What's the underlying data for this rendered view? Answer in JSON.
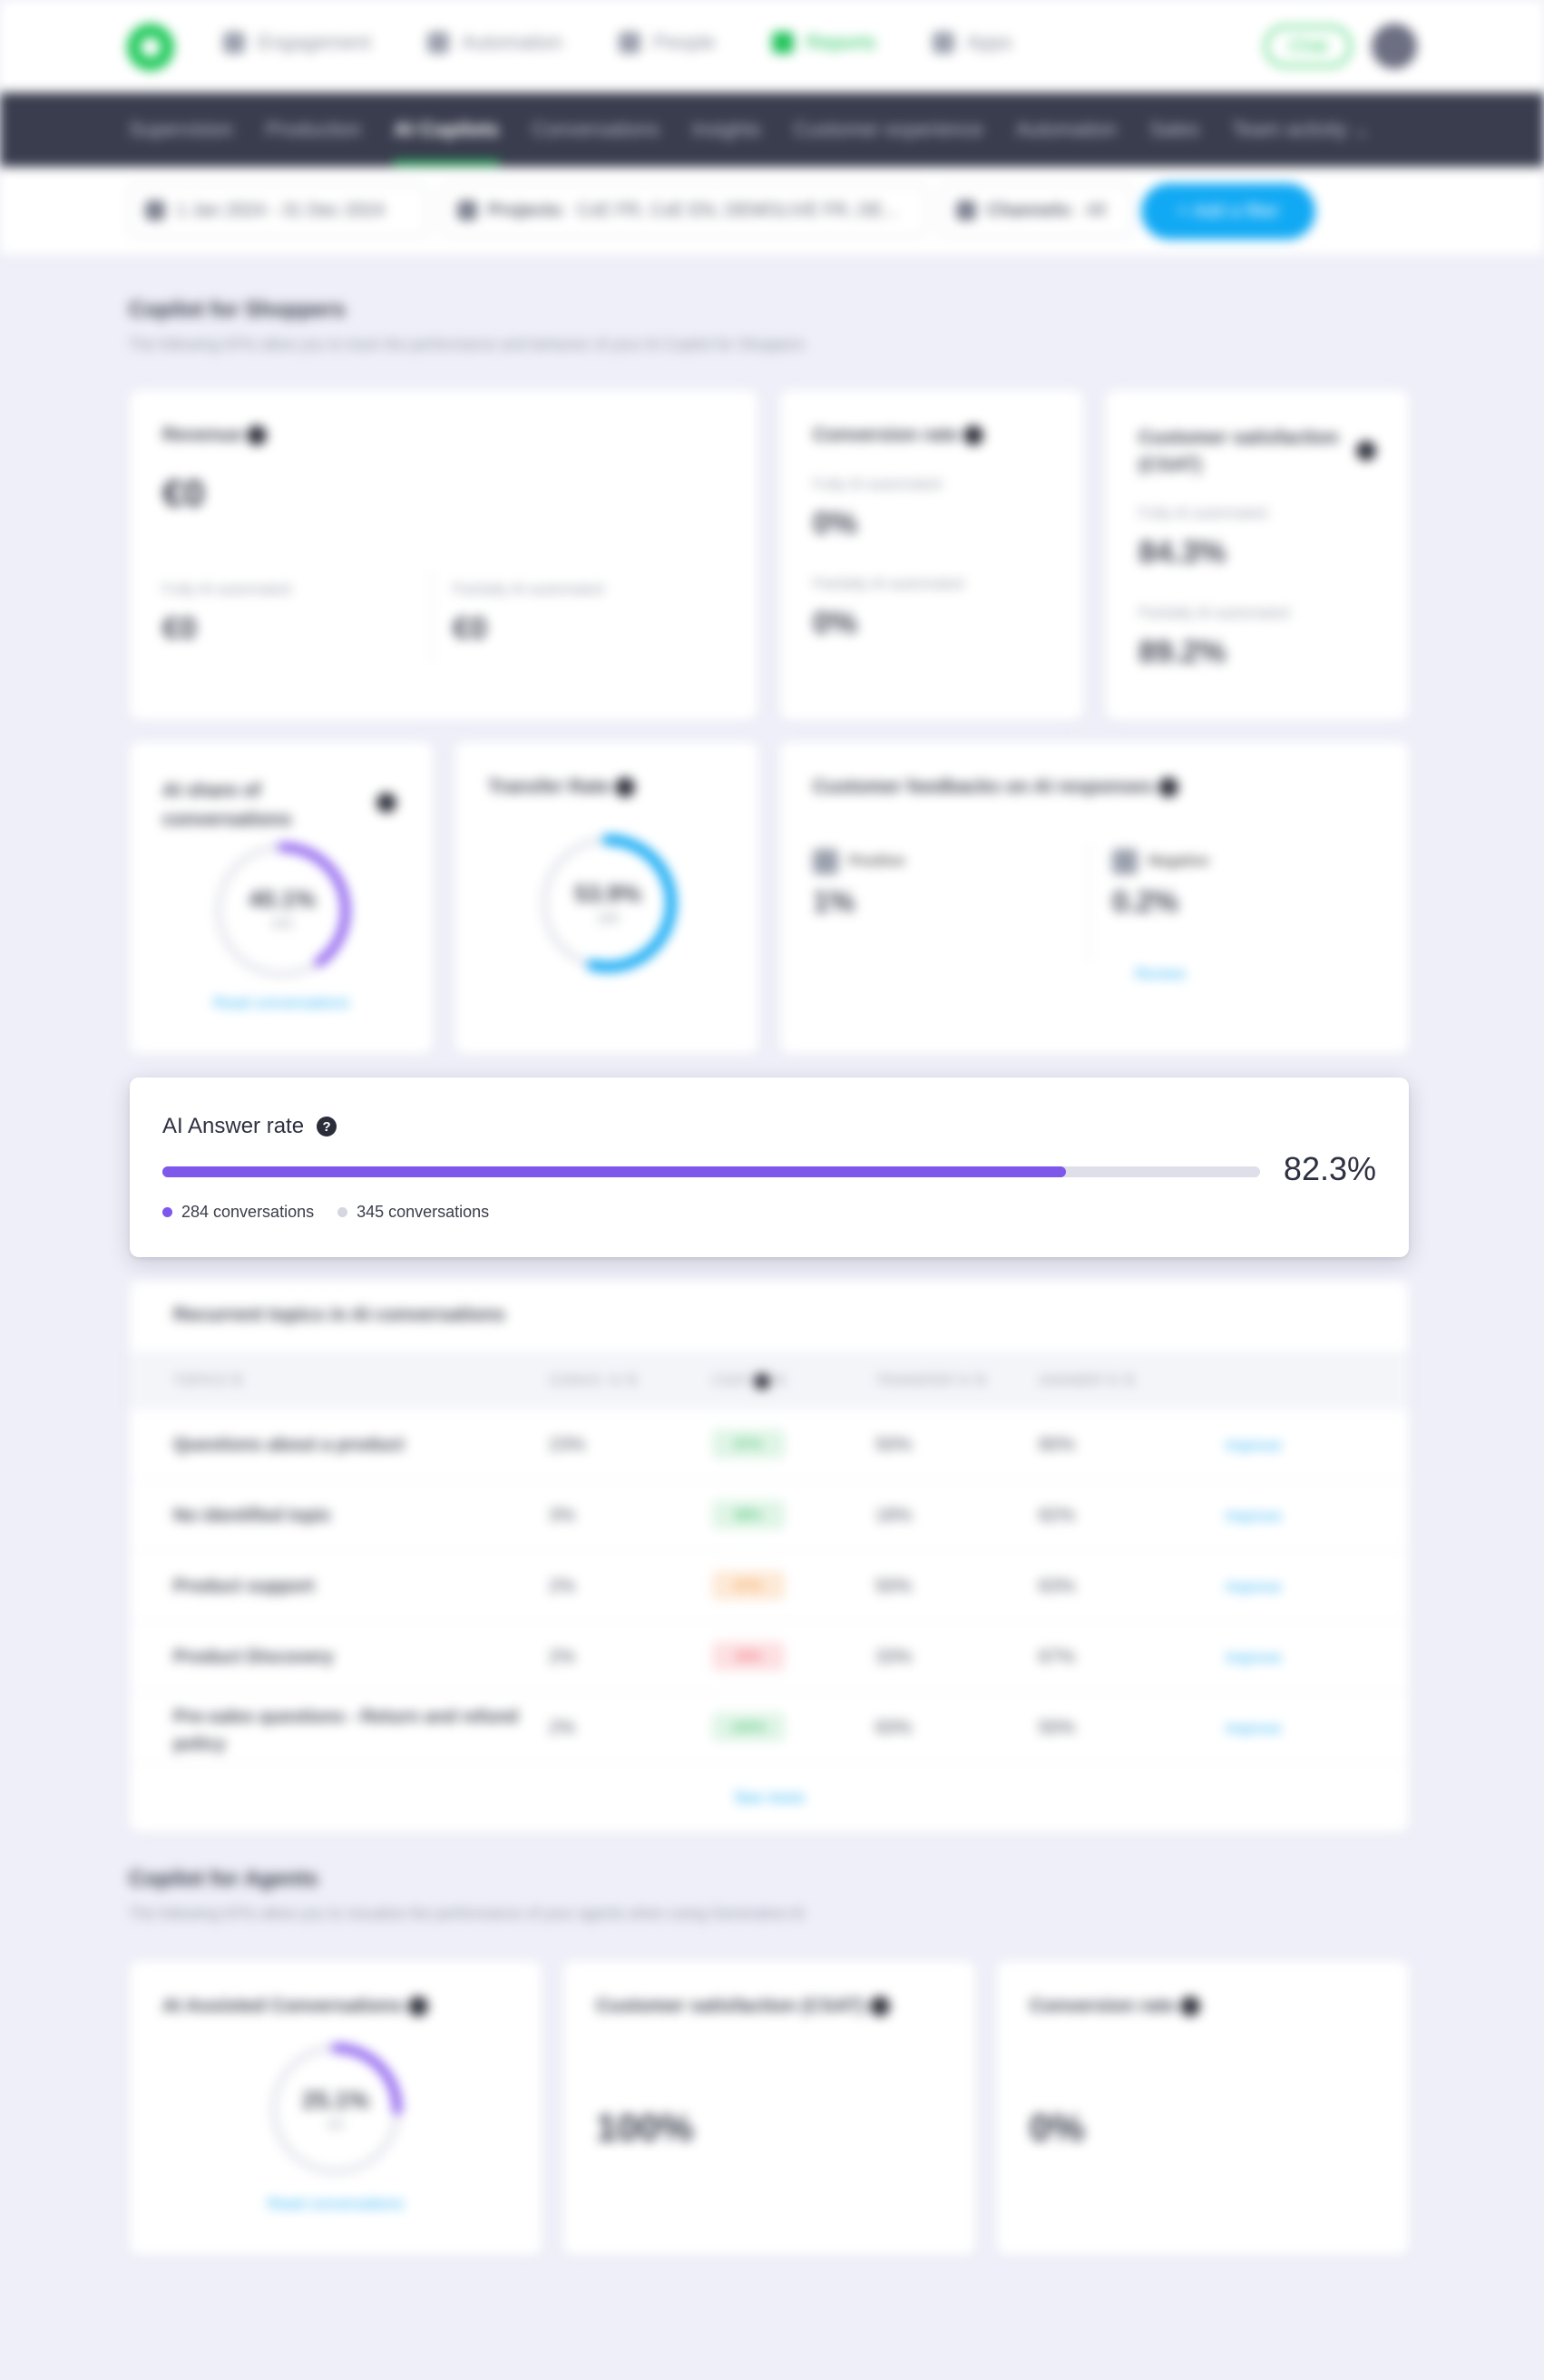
{
  "topnav": {
    "items": [
      {
        "label": "Engagement",
        "icon": "engagement-icon"
      },
      {
        "label": "Automation",
        "icon": "automation-icon"
      },
      {
        "label": "People",
        "icon": "person-icon"
      },
      {
        "label": "Reports",
        "icon": "bar-chart-icon",
        "active": true
      },
      {
        "label": "Apps",
        "icon": "apps-grid-icon"
      }
    ],
    "chat_label": "Chat"
  },
  "subnav": {
    "items": [
      "Supervision",
      "Production",
      "AI Copilots",
      "Conversations",
      "Insights",
      "Customer experience",
      "Automation",
      "Sales",
      "Team activity"
    ],
    "active_index": 2
  },
  "filters": {
    "date": "1 Jan 2024 - 31 Dec 2024",
    "projects_label": "Projects:",
    "projects_value": "CxE FR, CxE EN, DEMOLIVE FR, DE...",
    "channels_label": "Channels:",
    "channels_value": "All",
    "add_filter": "Add a filter"
  },
  "shoppers": {
    "title": "Copilot for Shoppers",
    "subtitle": "The following KPIs allow you to track the performance and behavior of your AI Copilot for Shoppers",
    "revenue": {
      "title": "Revenue",
      "value": "€0",
      "fully_label": "Fully AI-automated",
      "fully_value": "€0",
      "partially_label": "Partially AI-automated",
      "partially_value": "€0"
    },
    "conversion": {
      "title": "Conversion rate",
      "fully_label": "Fully AI-automated",
      "fully_value": "0%",
      "partially_label": "Partially AI-automated",
      "partially_value": "0%"
    },
    "csat": {
      "title": "Customer satisfaction (CSAT)",
      "fully_label": "Fully AI-automated",
      "fully_value": "84.3%",
      "partially_label": "Partially AI-automated",
      "partially_value": "89.2%"
    },
    "ai_share": {
      "title": "AI share of conversations",
      "value": "40.1%",
      "count": "345",
      "fraction": 0.401,
      "link": "Read conversations"
    },
    "transfer": {
      "title": "Transfer Rate",
      "value": "53.9%",
      "count": "186",
      "fraction": 0.539
    },
    "feedback": {
      "title": "Customer feedbacks on AI responses",
      "positive_label": "Positive",
      "positive_value": "1%",
      "negative_label": "Negative",
      "negative_value": "0.2%",
      "review": "Review"
    }
  },
  "answer_rate": {
    "title": "AI Answer rate",
    "help": "?",
    "percent": "82.3%",
    "fraction": 0.823,
    "answered": "284 conversations",
    "total": "345 conversations",
    "colors": {
      "fill": "#7e57eb",
      "track": "#dedfe8"
    }
  },
  "topics": {
    "title": "Recurrent topics in AI conversations",
    "headers": [
      "TOPICS",
      "CONVS. %",
      "CSAT",
      "TRANSFER %",
      "ANSWER %"
    ],
    "rows": [
      {
        "topic": "Questions about a product",
        "convs": "23%",
        "csat": "87%",
        "csat_color": "green",
        "transfer": "50%",
        "answer": "80%",
        "action": "Improve"
      },
      {
        "topic": "No identified topic",
        "convs": "3%",
        "csat": "88%",
        "csat_color": "green",
        "transfer": "18%",
        "answer": "82%",
        "action": "Improve"
      },
      {
        "topic": "Product support",
        "convs": "2%",
        "csat": "67%",
        "csat_color": "orange",
        "transfer": "50%",
        "answer": "63%",
        "action": "Improve"
      },
      {
        "topic": "Product Discovery",
        "convs": "2%",
        "csat": "33%",
        "csat_color": "red",
        "transfer": "33%",
        "answer": "67%",
        "action": "Improve"
      },
      {
        "topic": "Pre-sales questions - Return and refund policy",
        "convs": "2%",
        "csat": "100%",
        "csat_color": "green",
        "transfer": "83%",
        "answer": "50%",
        "action": "Improve"
      }
    ],
    "see_more": "See more"
  },
  "agents": {
    "title": "Copilot for Agents",
    "subtitle": "The following KPIs allow you to visualize the performance of your agents when using Generative AI",
    "assisted": {
      "title": "AI Assisted Conversations",
      "value": "25.1%",
      "count": "63",
      "fraction": 0.251,
      "link": "Read conversations"
    },
    "csat": {
      "title": "Customer satisfaction (CSAT)",
      "value": "100%"
    },
    "conversion": {
      "title": "Conversion rate",
      "value": "0%"
    }
  }
}
